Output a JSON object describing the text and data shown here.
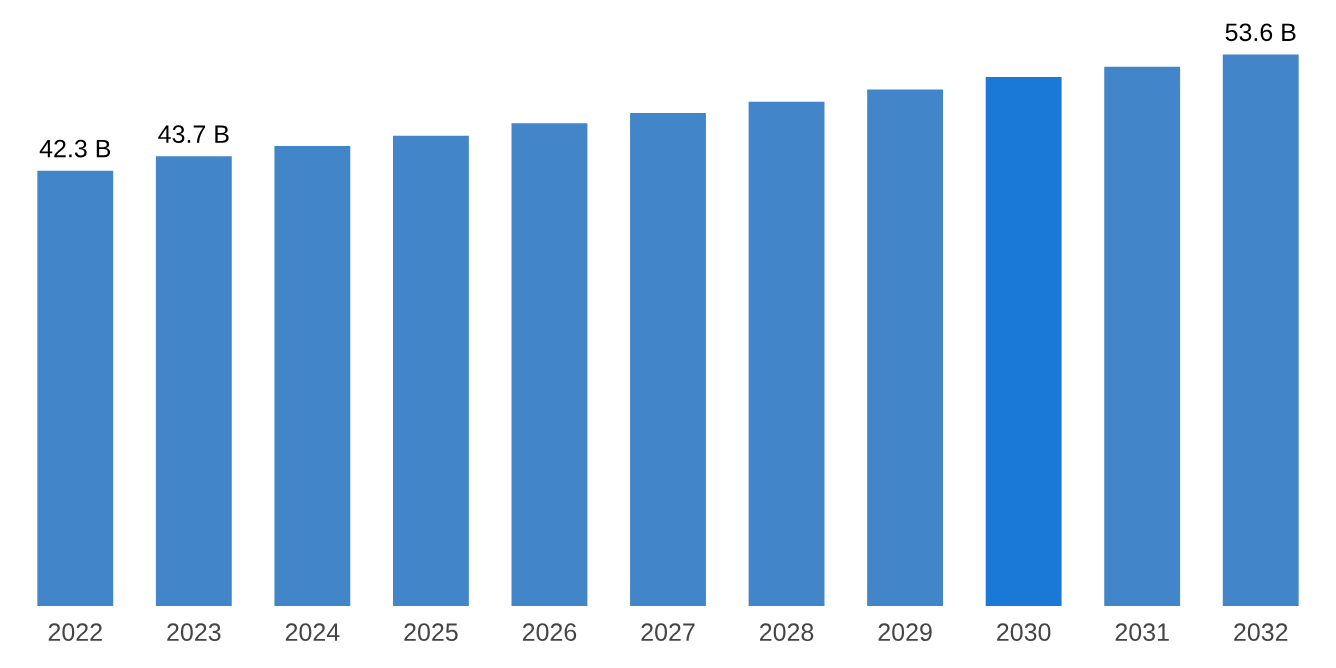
{
  "chart_data": {
    "type": "bar",
    "categories": [
      "2022",
      "2023",
      "2024",
      "2025",
      "2026",
      "2027",
      "2028",
      "2029",
      "2030",
      "2031",
      "2032"
    ],
    "values": [
      42.3,
      43.7,
      44.7,
      45.7,
      46.9,
      47.9,
      49.0,
      50.2,
      51.4,
      52.4,
      53.6
    ],
    "colors": [
      "#4285c8",
      "#4285c8",
      "#4285c8",
      "#4285c8",
      "#4285c8",
      "#4285c8",
      "#4285c8",
      "#4285c8",
      "#1a78d6",
      "#4285c8",
      "#4285c8"
    ],
    "value_labels": [
      "42.3 B",
      "43.7 B",
      null,
      null,
      null,
      null,
      null,
      null,
      null,
      null,
      "53.6 B"
    ],
    "grid": false,
    "legend": false
  }
}
